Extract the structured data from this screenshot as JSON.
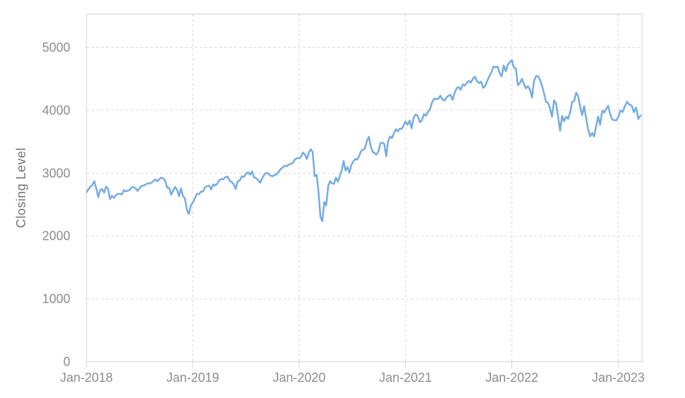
{
  "chart_data": {
    "type": "line",
    "title": "",
    "xlabel": "",
    "ylabel": "Closing Level",
    "series_name": "Closing Level",
    "line_color": "#74abe2",
    "grid": "dashed",
    "legend": "none",
    "x_tick_labels": [
      "Jan-2018",
      "Jan-2019",
      "Jan-2020",
      "Jan-2021",
      "Jan-2022",
      "Jan-2023"
    ],
    "y_tick_labels": [
      "0",
      "1000",
      "2000",
      "3000",
      "4000",
      "5000"
    ],
    "y_ticks": [
      0,
      1000,
      2000,
      3000,
      4000,
      5000
    ],
    "ylim": [
      0,
      5530
    ],
    "xlim_years": [
      2018.0,
      2023.23
    ],
    "years": [
      {
        "year": 2018,
        "span": 1,
        "values": [
          2696,
          2743,
          2786,
          2810,
          2873,
          2762,
          2620,
          2732,
          2747,
          2691,
          2787,
          2752,
          2588,
          2641,
          2604,
          2656,
          2670,
          2670,
          2663,
          2728,
          2713,
          2721,
          2735,
          2779,
          2780,
          2755,
          2718,
          2760,
          2801,
          2802,
          2819,
          2840,
          2833,
          2850,
          2875,
          2901,
          2872,
          2905,
          2930,
          2914,
          2886,
          2767,
          2768,
          2659,
          2723,
          2781,
          2736,
          2633,
          2760,
          2633,
          2600,
          2417,
          2351,
          2486
        ]
      },
      {
        "year": 2019,
        "span": 1,
        "values": [
          2532,
          2596,
          2671,
          2665,
          2707,
          2708,
          2776,
          2793,
          2803,
          2743,
          2822,
          2801,
          2834,
          2893,
          2907,
          2905,
          2940,
          2946,
          2881,
          2860,
          2826,
          2752,
          2873,
          2887,
          2950,
          2942,
          2990,
          3014,
          2977,
          3026,
          2932,
          2919,
          2889,
          2847,
          2926,
          2979,
          3007,
          2992,
          2962,
          2952,
          2970,
          2986,
          3023,
          3067,
          3093,
          3120,
          3110,
          3141,
          3146,
          3169,
          3221,
          3240
        ]
      },
      {
        "year": 2020,
        "span": 1,
        "values": [
          3235,
          3265,
          3330,
          3295,
          3226,
          3328,
          3380,
          3338,
          2954,
          2972,
          2711,
          2305,
          2237,
          2541,
          2489,
          2790,
          2875,
          2837,
          2831,
          2930,
          2864,
          2955,
          3044,
          3194,
          3041,
          3098,
          3009,
          3130,
          3185,
          3225,
          3216,
          3271,
          3351,
          3373,
          3397,
          3508,
          3581,
          3427,
          3341,
          3319,
          3298,
          3348,
          3477,
          3484,
          3465,
          3270,
          3509,
          3585,
          3558,
          3638,
          3699,
          3663,
          3709,
          3703,
          3756
        ]
      },
      {
        "year": 2021,
        "span": 1,
        "values": [
          3825,
          3768,
          3841,
          3714,
          3887,
          3935,
          3907,
          3811,
          3842,
          3943,
          3913,
          3975,
          4020,
          4129,
          4185,
          4180,
          4181,
          4233,
          4174,
          4156,
          4204,
          4230,
          4247,
          4166,
          4281,
          4352,
          4370,
          4327,
          4412,
          4395,
          4437,
          4468,
          4442,
          4509,
          4535,
          4459,
          4433,
          4455,
          4357,
          4391,
          4471,
          4545,
          4605,
          4698,
          4683,
          4698,
          4595,
          4538,
          4712,
          4621,
          4726,
          4766
        ]
      },
      {
        "year": 2022,
        "span": 1,
        "values": [
          4796,
          4677,
          4663,
          4398,
          4432,
          4501,
          4419,
          4349,
          4385,
          4329,
          4204,
          4463,
          4543,
          4546,
          4488,
          4393,
          4272,
          4132,
          4123,
          4024,
          3901,
          4158,
          4109,
          3901,
          3675,
          3912,
          3825,
          3899,
          3863,
          3962,
          4130,
          4145,
          4280,
          4228,
          4058,
          3924,
          4067,
          3873,
          3693,
          3586,
          3640,
          3583,
          3753,
          3901,
          3771,
          3993,
          3965,
          4026,
          4072,
          3934,
          3852,
          3845,
          3840
        ]
      },
      {
        "year": 2023,
        "span": 0.23,
        "values": [
          3895,
          3999,
          3973,
          4071,
          4136,
          4090,
          4079,
          3970,
          4046,
          3862,
          3917
        ]
      }
    ]
  },
  "colors": {
    "background": "#ffffff",
    "plot_border": "#ccd1d9",
    "gridline": "#dadada",
    "tick_mark": "#ccd1d9",
    "tick_label": "#8c8c8c",
    "axis_title": "#737373",
    "line": "#74abe2"
  }
}
